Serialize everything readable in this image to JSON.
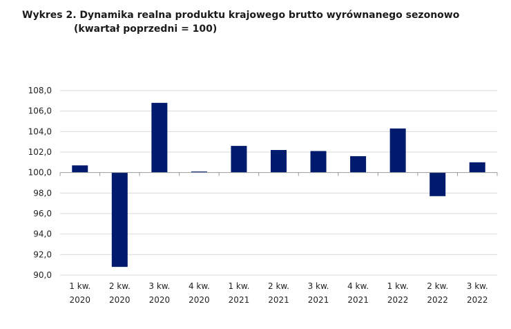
{
  "chart_data": {
    "type": "bar",
    "title": "Wykres 2. Dynamika realna produktu krajowego brutto wyrównanego sezonowo",
    "subtitle": "(kwartał poprzedni = 100)",
    "xlabel": "",
    "ylabel": "",
    "categories": [
      [
        "1 kw.",
        "2020"
      ],
      [
        "2 kw.",
        "2020"
      ],
      [
        "3 kw.",
        "2020"
      ],
      [
        "4 kw.",
        "2020"
      ],
      [
        "1 kw.",
        "2021"
      ],
      [
        "2 kw.",
        "2021"
      ],
      [
        "3 kw.",
        "2021"
      ],
      [
        "4 kw.",
        "2021"
      ],
      [
        "1 kw.",
        "2022"
      ],
      [
        "2 kw.",
        "2022"
      ],
      [
        "3 kw.",
        "2022"
      ]
    ],
    "values": [
      100.7,
      90.8,
      106.8,
      100.1,
      102.6,
      102.2,
      102.1,
      101.6,
      104.3,
      97.7,
      101.0
    ],
    "baseline": 100,
    "ylim": [
      90,
      108
    ],
    "yticks": [
      "90,0",
      "92,0",
      "94,0",
      "96,0",
      "98,0",
      "100,0",
      "102,0",
      "104,0",
      "106,0",
      "108,0"
    ],
    "grid": true,
    "legend": "none",
    "bar_color": "#001a6e"
  }
}
